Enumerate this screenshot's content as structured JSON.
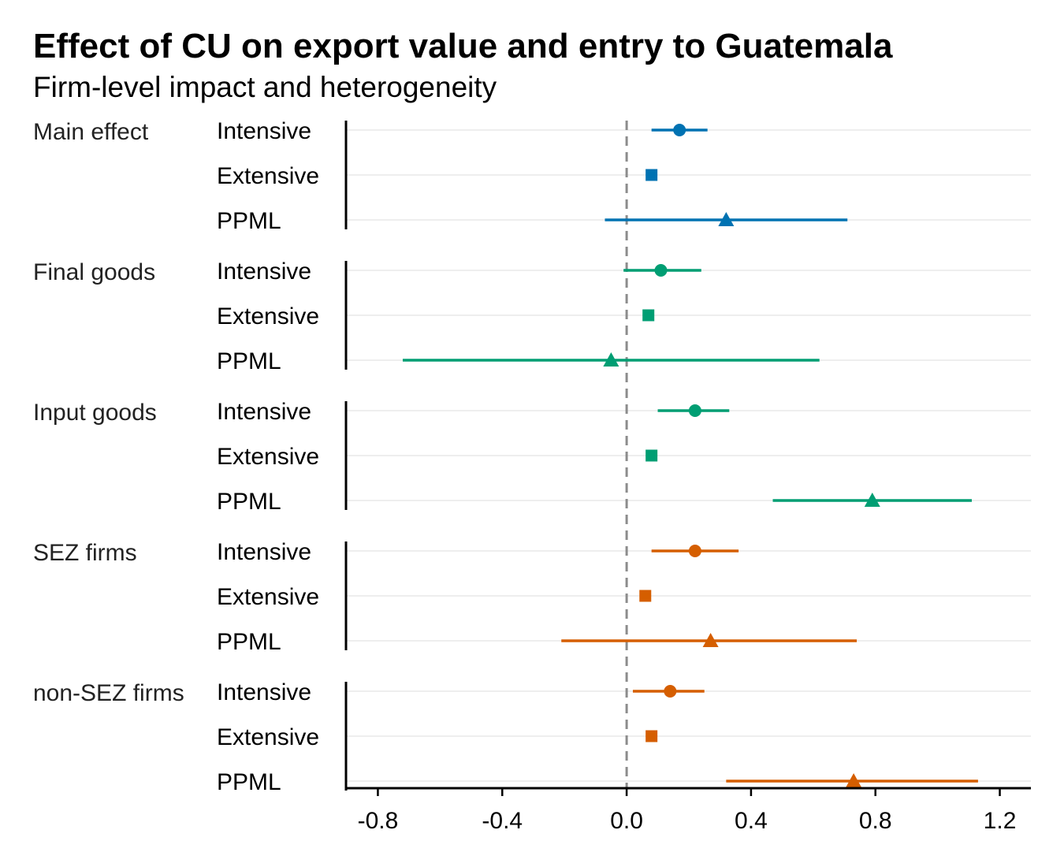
{
  "chart_data": {
    "type": "forest",
    "title": "Effect of CU on export value and entry to Guatemala",
    "subtitle": "Firm-level impact and heterogeneity",
    "xlim": [
      -0.9,
      1.3
    ],
    "xticks": [
      -0.8,
      -0.4,
      0.0,
      0.4,
      0.8,
      1.2
    ],
    "xtick_labels": [
      "-0.8",
      "-0.4",
      "0.0",
      "0.4",
      "0.8",
      "1.2"
    ],
    "reference_line": 0.0,
    "grid": "horizontal",
    "groups": [
      {
        "label": "Main effect",
        "color": "#0072B2",
        "rows": [
          {
            "label": "Intensive",
            "shape": "circle",
            "estimate": 0.17,
            "ci": [
              0.08,
              0.26
            ]
          },
          {
            "label": "Extensive",
            "shape": "square",
            "estimate": 0.08,
            "ci": [
              0.07,
              0.09
            ]
          },
          {
            "label": "PPML",
            "shape": "triangle",
            "estimate": 0.32,
            "ci": [
              -0.07,
              0.71
            ]
          }
        ]
      },
      {
        "label": "Final goods",
        "color": "#009E73",
        "rows": [
          {
            "label": "Intensive",
            "shape": "circle",
            "estimate": 0.11,
            "ci": [
              -0.01,
              0.24
            ]
          },
          {
            "label": "Extensive",
            "shape": "square",
            "estimate": 0.07,
            "ci": [
              0.06,
              0.08
            ]
          },
          {
            "label": "PPML",
            "shape": "triangle",
            "estimate": -0.05,
            "ci": [
              -0.72,
              0.62
            ]
          }
        ]
      },
      {
        "label": "Input goods",
        "color": "#009E73",
        "rows": [
          {
            "label": "Intensive",
            "shape": "circle",
            "estimate": 0.22,
            "ci": [
              0.1,
              0.33
            ]
          },
          {
            "label": "Extensive",
            "shape": "square",
            "estimate": 0.08,
            "ci": [
              0.07,
              0.09
            ]
          },
          {
            "label": "PPML",
            "shape": "triangle",
            "estimate": 0.79,
            "ci": [
              0.47,
              1.11
            ]
          }
        ]
      },
      {
        "label": "SEZ firms",
        "color": "#D55E00",
        "rows": [
          {
            "label": "Intensive",
            "shape": "circle",
            "estimate": 0.22,
            "ci": [
              0.08,
              0.36
            ]
          },
          {
            "label": "Extensive",
            "shape": "square",
            "estimate": 0.06,
            "ci": [
              0.05,
              0.07
            ]
          },
          {
            "label": "PPML",
            "shape": "triangle",
            "estimate": 0.27,
            "ci": [
              -0.21,
              0.74
            ]
          }
        ]
      },
      {
        "label": "non-SEZ firms",
        "color": "#D55E00",
        "rows": [
          {
            "label": "Intensive",
            "shape": "circle",
            "estimate": 0.14,
            "ci": [
              0.02,
              0.25
            ]
          },
          {
            "label": "Extensive",
            "shape": "square",
            "estimate": 0.08,
            "ci": [
              0.07,
              0.09
            ]
          },
          {
            "label": "PPML",
            "shape": "triangle",
            "estimate": 0.73,
            "ci": [
              0.32,
              1.13
            ]
          }
        ]
      }
    ]
  }
}
